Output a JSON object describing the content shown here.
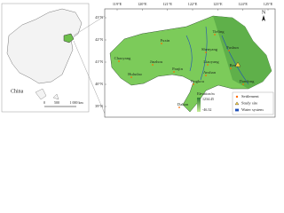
{
  "inset": {
    "label": "China",
    "scale_labels": [
      "0",
      "500",
      "1 000 km"
    ]
  },
  "main": {
    "lon_ticks": [
      "119°E",
      "120°E",
      "121°E",
      "122°E",
      "123°E",
      "124°E",
      "125°E"
    ],
    "lat_ticks": [
      "43°N",
      "42°N",
      "41°N",
      "40°N",
      "39°N"
    ],
    "north": "N",
    "cities": [
      "Fuxin",
      "Tieling",
      "Shenyang",
      "Fushun",
      "Chaoyang",
      "Jinzhou",
      "Liaoyang",
      "Benxi",
      "Huludao",
      "Panjin",
      "Anshan",
      "Yingkou",
      "Dandong",
      "Dalian"
    ],
    "elevation": {
      "title": "Elevation/m",
      "high": "1234.45",
      "low": "-46.32"
    },
    "legend": [
      "Settlement",
      "Study site",
      "Water system"
    ]
  }
}
